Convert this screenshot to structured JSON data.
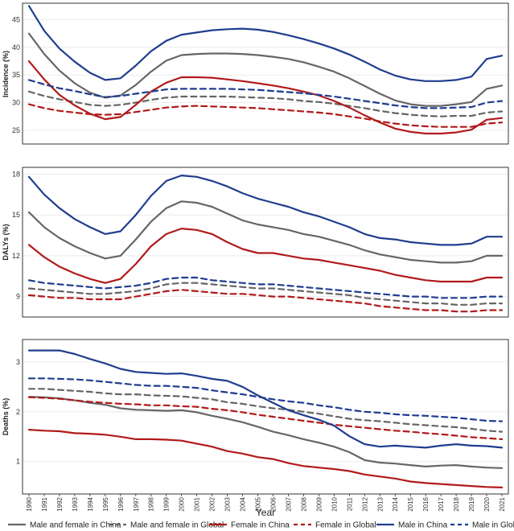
{
  "chart_data": {
    "type": "line",
    "x": [
      1990,
      1991,
      1992,
      1993,
      1994,
      1995,
      1996,
      1997,
      1998,
      1999,
      2000,
      2001,
      2002,
      2003,
      2004,
      2005,
      2006,
      2007,
      2008,
      2009,
      2010,
      2011,
      2012,
      2013,
      2014,
      2015,
      2016,
      2017,
      2018,
      2019,
      2020,
      2021
    ],
    "xlabel": "Year",
    "series_styles": [
      {
        "name": "Male and female in China",
        "color": "#666666",
        "dash": "solid"
      },
      {
        "name": "Male and female in Global",
        "color": "#666666",
        "dash": "dashed"
      },
      {
        "name": "Female in China",
        "color": "#b11a1a",
        "dash": "solid"
      },
      {
        "name": "Female in Global",
        "color": "#b11a1a",
        "dash": "dashed"
      },
      {
        "name": "Male in China",
        "color": "#1f3d8f",
        "dash": "solid"
      },
      {
        "name": "Male in Global",
        "color": "#1f3d8f",
        "dash": "dashed"
      }
    ],
    "panels": [
      {
        "ylabel": "Incidence (%)",
        "ylim": [
          22.5,
          48
        ],
        "yticks": [
          "25",
          "30",
          "35",
          "40",
          "45"
        ],
        "ytick_values": [
          25,
          30,
          35,
          40,
          45
        ],
        "series": [
          {
            "name": "Male and female in China",
            "values": [
              42.5,
              38.8,
              35.8,
              33.5,
              31.8,
              30.9,
              31.3,
              33.2,
              35.6,
              37.6,
              38.6,
              38.8,
              38.9,
              38.9,
              38.8,
              38.6,
              38.3,
              37.9,
              37.3,
              36.5,
              35.6,
              34.4,
              33.0,
              31.6,
              30.4,
              29.7,
              29.4,
              29.4,
              29.7,
              30.1,
              32.5,
              33.1
            ]
          },
          {
            "name": "Male and female in Global",
            "values": [
              32.0,
              31.2,
              30.6,
              30.1,
              29.6,
              29.4,
              29.6,
              30.0,
              30.5,
              30.9,
              31.1,
              31.1,
              31.1,
              31.1,
              31.0,
              30.9,
              30.8,
              30.6,
              30.3,
              30.1,
              29.8,
              29.4,
              29.0,
              28.5,
              28.1,
              27.8,
              27.6,
              27.5,
              27.6,
              27.6,
              28.2,
              28.4
            ]
          },
          {
            "name": "Female in China",
            "values": [
              37.5,
              34.2,
              31.4,
              29.5,
              28.0,
              27.0,
              27.4,
              29.6,
              32.0,
              33.6,
              34.6,
              34.6,
              34.5,
              34.2,
              33.9,
              33.5,
              33.1,
              32.6,
              32.0,
              31.3,
              30.3,
              29.1,
              27.7,
              26.4,
              25.3,
              24.7,
              24.4,
              24.4,
              24.6,
              25.1,
              26.9,
              27.2
            ]
          },
          {
            "name": "Female in Global",
            "values": [
              29.7,
              29.0,
              28.5,
              28.2,
              27.9,
              27.8,
              27.9,
              28.3,
              28.7,
              29.1,
              29.3,
              29.4,
              29.3,
              29.2,
              29.1,
              29.0,
              28.8,
              28.6,
              28.4,
              28.2,
              27.9,
              27.5,
              27.1,
              26.6,
              26.2,
              25.9,
              25.7,
              25.6,
              25.6,
              25.6,
              26.2,
              26.4
            ]
          },
          {
            "name": "Male in China",
            "values": [
              47.5,
              43.0,
              39.8,
              37.4,
              35.4,
              34.1,
              34.4,
              36.7,
              39.3,
              41.2,
              42.3,
              42.7,
              43.1,
              43.3,
              43.4,
              43.2,
              42.8,
              42.2,
              41.5,
              40.7,
              39.8,
              38.7,
              37.4,
              36.0,
              34.9,
              34.2,
              33.9,
              33.9,
              34.1,
              34.7,
              37.9,
              38.5
            ]
          },
          {
            "name": "Male in Global",
            "values": [
              34.1,
              33.3,
              32.6,
              32.1,
              31.5,
              31.0,
              31.2,
              31.6,
              32.0,
              32.4,
              32.5,
              32.5,
              32.5,
              32.5,
              32.4,
              32.3,
              32.1,
              31.9,
              31.7,
              31.4,
              31.1,
              30.7,
              30.3,
              29.9,
              29.5,
              29.2,
              29.0,
              29.0,
              29.1,
              29.2,
              30.0,
              30.3
            ]
          }
        ]
      },
      {
        "ylabel": "DALYs (%)",
        "ylim": [
          7.5,
          18.5
        ],
        "yticks": [
          "9",
          "12",
          "15",
          "18"
        ],
        "ytick_values": [
          9,
          12,
          15,
          18
        ],
        "series": [
          {
            "name": "Male and female in China",
            "values": [
              15.2,
              14.1,
              13.3,
              12.7,
              12.2,
              11.8,
              12.0,
              13.2,
              14.5,
              15.5,
              16.0,
              15.9,
              15.6,
              15.1,
              14.6,
              14.3,
              14.1,
              13.9,
              13.6,
              13.4,
              13.1,
              12.8,
              12.4,
              12.1,
              11.9,
              11.7,
              11.6,
              11.5,
              11.5,
              11.6,
              12.0,
              12.0
            ]
          },
          {
            "name": "Male and female in Global",
            "values": [
              9.6,
              9.5,
              9.4,
              9.3,
              9.2,
              9.2,
              9.3,
              9.4,
              9.6,
              9.9,
              10.0,
              10.0,
              9.9,
              9.8,
              9.7,
              9.6,
              9.6,
              9.5,
              9.4,
              9.3,
              9.2,
              9.1,
              8.9,
              8.8,
              8.7,
              8.6,
              8.5,
              8.5,
              8.4,
              8.4,
              8.5,
              8.5
            ]
          },
          {
            "name": "Female in China",
            "values": [
              12.8,
              11.9,
              11.2,
              10.7,
              10.3,
              10.0,
              10.3,
              11.4,
              12.7,
              13.6,
              14.0,
              13.9,
              13.6,
              13.0,
              12.5,
              12.2,
              12.2,
              12.0,
              11.8,
              11.7,
              11.5,
              11.3,
              11.1,
              10.9,
              10.6,
              10.4,
              10.2,
              10.1,
              10.1,
              10.1,
              10.4,
              10.4
            ]
          },
          {
            "name": "Female in Global",
            "values": [
              9.1,
              9.0,
              8.9,
              8.9,
              8.8,
              8.8,
              8.8,
              9.0,
              9.2,
              9.4,
              9.5,
              9.4,
              9.3,
              9.2,
              9.2,
              9.1,
              9.0,
              9.0,
              8.9,
              8.8,
              8.7,
              8.6,
              8.5,
              8.3,
              8.2,
              8.1,
              8.0,
              8.0,
              7.9,
              7.9,
              8.0,
              8.0
            ]
          },
          {
            "name": "Male in China",
            "values": [
              17.8,
              16.5,
              15.5,
              14.7,
              14.1,
              13.6,
              13.8,
              15.0,
              16.4,
              17.5,
              17.9,
              17.8,
              17.5,
              17.1,
              16.6,
              16.2,
              15.9,
              15.6,
              15.2,
              14.9,
              14.5,
              14.1,
              13.6,
              13.3,
              13.2,
              13.0,
              12.9,
              12.8,
              12.8,
              12.9,
              13.4,
              13.4
            ]
          },
          {
            "name": "Male in Global",
            "values": [
              10.2,
              10.0,
              9.9,
              9.8,
              9.7,
              9.6,
              9.7,
              9.8,
              10.0,
              10.3,
              10.4,
              10.4,
              10.2,
              10.1,
              10.0,
              9.9,
              9.9,
              9.8,
              9.7,
              9.6,
              9.5,
              9.4,
              9.3,
              9.2,
              9.1,
              9.0,
              9.0,
              8.9,
              8.9,
              8.9,
              9.0,
              9.0
            ]
          }
        ]
      },
      {
        "ylabel": "Deaths (%)",
        "ylim": [
          0.35,
          3.45
        ],
        "yticks": [
          "1",
          "2",
          "3"
        ],
        "ytick_values": [
          1,
          2,
          3
        ],
        "series": [
          {
            "name": "Male and female in China",
            "values": [
              2.3,
              2.29,
              2.27,
              2.23,
              2.18,
              2.14,
              2.07,
              2.04,
              2.03,
              2.02,
              2.03,
              1.99,
              1.92,
              1.86,
              1.79,
              1.7,
              1.6,
              1.53,
              1.45,
              1.38,
              1.3,
              1.19,
              1.03,
              0.98,
              0.96,
              0.93,
              0.9,
              0.92,
              0.93,
              0.9,
              0.88,
              0.87
            ]
          },
          {
            "name": "Male and female in Global",
            "values": [
              2.46,
              2.46,
              2.44,
              2.42,
              2.4,
              2.37,
              2.35,
              2.35,
              2.33,
              2.32,
              2.31,
              2.28,
              2.25,
              2.19,
              2.16,
              2.11,
              2.07,
              2.04,
              2.0,
              1.96,
              1.91,
              1.86,
              1.83,
              1.81,
              1.78,
              1.75,
              1.73,
              1.71,
              1.69,
              1.66,
              1.62,
              1.6
            ]
          },
          {
            "name": "Female in China",
            "values": [
              1.64,
              1.62,
              1.61,
              1.57,
              1.56,
              1.54,
              1.5,
              1.45,
              1.45,
              1.44,
              1.42,
              1.36,
              1.3,
              1.21,
              1.16,
              1.09,
              1.05,
              0.97,
              0.91,
              0.88,
              0.85,
              0.81,
              0.74,
              0.7,
              0.66,
              0.6,
              0.57,
              0.55,
              0.53,
              0.51,
              0.49,
              0.48
            ]
          },
          {
            "name": "Female in Global",
            "values": [
              2.29,
              2.28,
              2.26,
              2.23,
              2.2,
              2.18,
              2.16,
              2.15,
              2.13,
              2.13,
              2.11,
              2.1,
              2.06,
              2.03,
              1.99,
              1.94,
              1.9,
              1.86,
              1.82,
              1.78,
              1.74,
              1.71,
              1.68,
              1.65,
              1.62,
              1.6,
              1.57,
              1.55,
              1.52,
              1.49,
              1.47,
              1.45
            ]
          },
          {
            "name": "Male in China",
            "values": [
              3.23,
              3.23,
              3.23,
              3.16,
              3.06,
              2.97,
              2.86,
              2.8,
              2.78,
              2.76,
              2.77,
              2.72,
              2.66,
              2.62,
              2.5,
              2.33,
              2.18,
              2.03,
              1.93,
              1.84,
              1.72,
              1.51,
              1.35,
              1.3,
              1.32,
              1.3,
              1.28,
              1.32,
              1.35,
              1.32,
              1.31,
              1.28
            ]
          },
          {
            "name": "Male in Global",
            "values": [
              2.67,
              2.67,
              2.66,
              2.65,
              2.63,
              2.6,
              2.57,
              2.54,
              2.52,
              2.52,
              2.5,
              2.48,
              2.43,
              2.39,
              2.35,
              2.3,
              2.25,
              2.21,
              2.18,
              2.13,
              2.09,
              2.04,
              2.0,
              1.98,
              1.95,
              1.93,
              1.92,
              1.9,
              1.88,
              1.85,
              1.82,
              1.81
            ]
          }
        ]
      }
    ]
  }
}
